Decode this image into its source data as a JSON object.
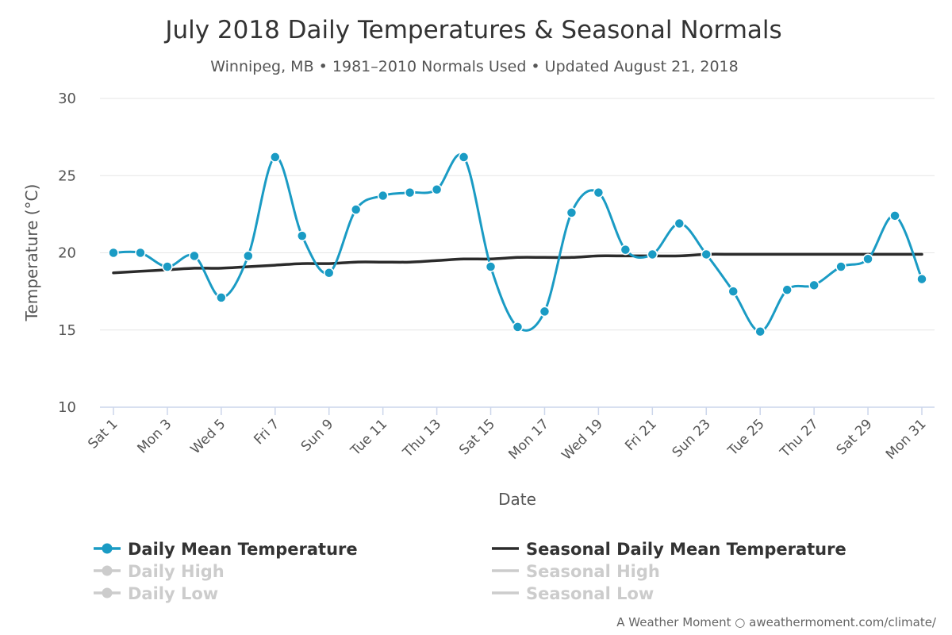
{
  "chart_data": {
    "type": "line",
    "title": "July 2018 Daily Temperatures & Seasonal Normals",
    "subtitle": "Winnipeg, MB • 1981–2010 Normals Used • Updated August 21, 2018",
    "xlabel": "Date",
    "ylabel": "Temperature (°C)",
    "ylim": [
      10,
      30
    ],
    "yticks": [
      10,
      15,
      20,
      25,
      30
    ],
    "grid": true,
    "legend_position": "bottom",
    "x": [
      1,
      2,
      3,
      4,
      5,
      6,
      7,
      8,
      9,
      10,
      11,
      12,
      13,
      14,
      15,
      16,
      17,
      18,
      19,
      20,
      21,
      22,
      23,
      24,
      25,
      26,
      27,
      28,
      29,
      30,
      31
    ],
    "tick_labels": [
      "Sat 1",
      "Mon 3",
      "Wed 5",
      "Fri 7",
      "Sun 9",
      "Tue 11",
      "Thu 13",
      "Sat 15",
      "Mon 17",
      "Wed 19",
      "Fri 21",
      "Sun 23",
      "Tue 25",
      "Thu 27",
      "Sat 29",
      "Mon 31"
    ],
    "tick_days": [
      1,
      3,
      5,
      7,
      9,
      11,
      13,
      15,
      17,
      19,
      21,
      23,
      25,
      27,
      29,
      31
    ],
    "series": [
      {
        "name": "Daily Mean Temperature",
        "color": "#1a9bc4",
        "markers": true,
        "visible": true,
        "values": [
          20.0,
          20.0,
          19.1,
          19.8,
          17.1,
          19.8,
          26.2,
          21.1,
          18.7,
          22.8,
          23.7,
          23.9,
          24.1,
          26.2,
          19.1,
          15.2,
          16.2,
          22.6,
          23.9,
          20.2,
          19.9,
          21.9,
          19.9,
          17.5,
          14.9,
          17.6,
          17.9,
          19.1,
          19.6,
          22.4,
          18.3
        ]
      },
      {
        "name": "Seasonal Daily Mean Temperature",
        "color": "#2b2b2b",
        "markers": false,
        "visible": true,
        "values": [
          18.7,
          18.8,
          18.9,
          19.0,
          19.0,
          19.1,
          19.2,
          19.3,
          19.3,
          19.4,
          19.4,
          19.4,
          19.5,
          19.6,
          19.6,
          19.7,
          19.7,
          19.7,
          19.8,
          19.8,
          19.8,
          19.8,
          19.9,
          19.9,
          19.9,
          19.9,
          19.9,
          19.9,
          19.9,
          19.9,
          19.9
        ]
      }
    ],
    "legend": [
      {
        "name": "Daily Mean Temperature",
        "style": "line-marker",
        "color": "#1a9bc4",
        "text_color": "#333333"
      },
      {
        "name": "Seasonal Daily Mean Temperature",
        "style": "line",
        "color": "#2b2b2b",
        "text_color": "#333333"
      },
      {
        "name": "Daily High",
        "style": "line-marker",
        "color": "#cccccc",
        "text_color": "#cccccc"
      },
      {
        "name": "Seasonal High",
        "style": "line",
        "color": "#cccccc",
        "text_color": "#cccccc"
      },
      {
        "name": "Daily Low",
        "style": "line-marker",
        "color": "#cccccc",
        "text_color": "#cccccc"
      },
      {
        "name": "Seasonal Low",
        "style": "line",
        "color": "#cccccc",
        "text_color": "#cccccc"
      }
    ],
    "credit": "A Weather Moment ○ aweathermoment.com/climate/"
  }
}
